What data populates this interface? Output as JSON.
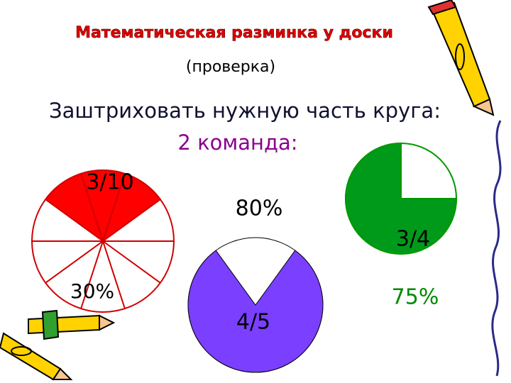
{
  "header": {
    "title": "Математическая разминка у доски",
    "subtitle": "(проверка)"
  },
  "task": {
    "instruction": "Заштриховать нужную часть круга:",
    "team": "2 команда:"
  },
  "circles": [
    {
      "fraction": "3/10",
      "percent": "30%"
    },
    {
      "fraction": "4/5",
      "percent": "80%"
    },
    {
      "fraction": "3/4",
      "percent": "75%"
    }
  ]
}
